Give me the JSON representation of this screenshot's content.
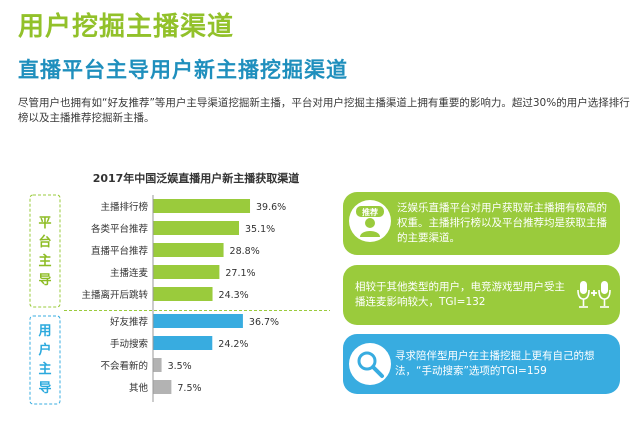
{
  "header": {
    "title": "用户挖掘主播渠道",
    "subtitle": "直播平台主导用户新主播挖掘渠道",
    "intro": "尽管用户也拥有如“好友推荐”等用户主导渠道挖掘新主播，平台对用户挖掘主播渠道上拥有重要的影响力。超过30%的用户选择排行榜以及主播推荐挖掘新主播。"
  },
  "groups": {
    "platform_label": "平台主导",
    "user_label": "用户主导"
  },
  "chart_data": {
    "type": "bar",
    "orientation": "horizontal",
    "title": "2017年中国泛娱直播用户新主播获取渠道",
    "categories": [
      "主播排行榜",
      "各类平台推荐",
      "直播平台推荐",
      "主播连麦",
      "主播离开后跳转",
      "好友推荐",
      "手动搜索",
      "不会看新的",
      "其他"
    ],
    "values": [
      39.6,
      35.1,
      28.8,
      27.1,
      24.3,
      36.7,
      24.2,
      3.5,
      7.5
    ],
    "value_labels": [
      "39.6%",
      "35.1%",
      "28.8%",
      "27.1%",
      "24.3%",
      "36.7%",
      "24.2%",
      "3.5%",
      "7.5%"
    ],
    "bar_groups": [
      "platform",
      "platform",
      "platform",
      "platform",
      "platform",
      "user",
      "user",
      "other",
      "other"
    ],
    "colors": {
      "platform": "#9acb3c",
      "user": "#38ace0",
      "other": "#b3b3b3"
    },
    "xlim": [
      0,
      45
    ],
    "grid": false,
    "legend": "none"
  },
  "cards": [
    {
      "text": "泛娱乐直播平台对用户获取新主播拥有极高的权重。主播排行榜以及平台推荐均是获取主播的主要渠道。",
      "icon_text": "推荐",
      "icon": "recommend-person-icon"
    },
    {
      "text": "相较于其他类型的用户，电竞游戏型用户受主播连麦影响较大，TGI=132",
      "icon": "microphones-icon"
    },
    {
      "text": "寻求陪伴型用户在主播挖掘上更有自己的想法，“手动搜索”选项的TGI=159",
      "icon": "search-icon"
    }
  ]
}
